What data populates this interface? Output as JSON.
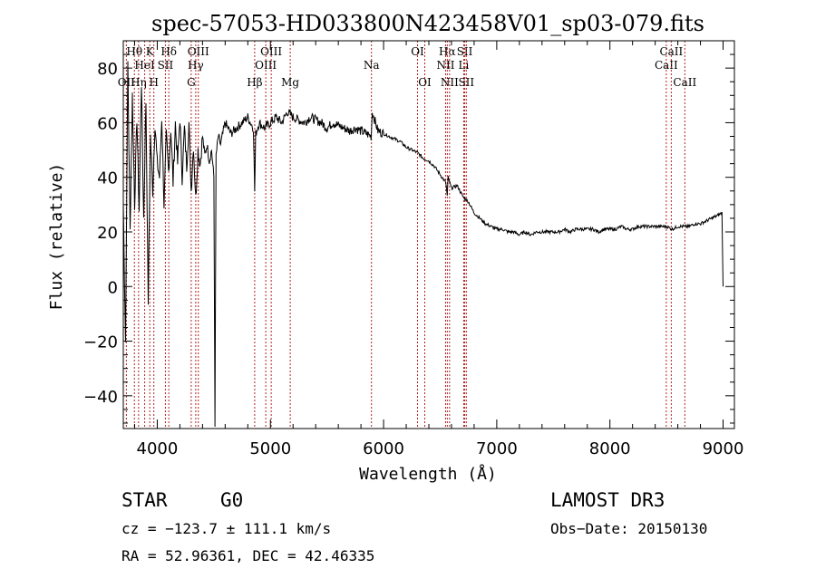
{
  "chart_data": {
    "type": "line",
    "title": "spec-57053-HD033800N423458V01_sp03-079.fits",
    "xlabel": "Wavelength (Å)",
    "ylabel": "Flux (relative)",
    "xlim": [
      3700,
      9100
    ],
    "ylim": [
      -52,
      90
    ],
    "x_ticks": [
      4000,
      5000,
      6000,
      7000,
      8000,
      9000
    ],
    "y_ticks": [
      -40,
      -20,
      0,
      20,
      40,
      60,
      80
    ],
    "series": [
      {
        "name": "spectrum",
        "x": [
          3700,
          3720,
          3740,
          3760,
          3780,
          3800,
          3820,
          3840,
          3860,
          3880,
          3900,
          3920,
          3940,
          3960,
          3980,
          4000,
          4020,
          4040,
          4060,
          4080,
          4100,
          4120,
          4140,
          4160,
          4180,
          4200,
          4220,
          4240,
          4260,
          4280,
          4300,
          4320,
          4340,
          4360,
          4380,
          4400,
          4420,
          4440,
          4460,
          4480,
          4500,
          4510,
          4520,
          4540,
          4560,
          4600,
          4650,
          4700,
          4750,
          4800,
          4850,
          4861,
          4870,
          4900,
          4950,
          5000,
          5050,
          5100,
          5150,
          5200,
          5250,
          5300,
          5350,
          5400,
          5450,
          5500,
          5550,
          5600,
          5650,
          5700,
          5750,
          5800,
          5850,
          5890,
          5900,
          5950,
          6000,
          6050,
          6100,
          6150,
          6200,
          6250,
          6300,
          6350,
          6400,
          6450,
          6500,
          6550,
          6563,
          6570,
          6600,
          6650,
          6700,
          6750,
          6800,
          6850,
          6900,
          6950,
          7000,
          7050,
          7100,
          7150,
          7200,
          7250,
          7300,
          7350,
          7400,
          7450,
          7500,
          7550,
          7600,
          7650,
          7700,
          7750,
          7800,
          7850,
          7900,
          7950,
          8000,
          8050,
          8100,
          8150,
          8200,
          8250,
          8300,
          8350,
          8400,
          8450,
          8500,
          8550,
          8600,
          8650,
          8700,
          8750,
          8800,
          8850,
          8900,
          8950,
          8990,
          9000
        ],
        "y": [
          30,
          -20,
          82,
          20,
          70,
          30,
          62,
          28,
          75,
          25,
          68,
          -5,
          55,
          35,
          60,
          45,
          40,
          62,
          30,
          55,
          42,
          58,
          38,
          60,
          45,
          62,
          40,
          58,
          44,
          60,
          35,
          52,
          32,
          50,
          45,
          55,
          48,
          52,
          46,
          50,
          40,
          -50,
          48,
          55,
          52,
          60,
          56,
          58,
          60,
          62,
          58,
          35,
          56,
          60,
          58,
          60,
          62,
          60,
          64,
          62,
          61,
          60,
          62,
          61,
          60,
          58,
          60,
          59,
          58,
          57,
          58,
          57,
          56,
          55,
          64,
          57,
          56,
          55,
          54,
          53,
          51,
          50,
          49,
          47,
          46,
          44,
          41,
          38,
          33,
          40,
          36,
          37,
          33,
          31,
          27,
          25,
          23,
          22,
          21,
          21,
          20,
          20,
          19,
          20,
          19,
          20,
          20,
          20,
          20,
          20,
          21,
          20,
          21,
          21,
          21,
          21,
          20,
          21,
          21,
          21,
          22,
          21,
          21,
          22,
          22,
          22,
          22,
          22,
          22,
          21,
          22,
          22,
          22,
          23,
          23,
          24,
          25,
          26,
          27,
          0
        ]
      }
    ],
    "spectral_lines": [
      {
        "x": 3727,
        "label": "OII",
        "row": 3
      },
      {
        "x": 3798,
        "label": "Hθ",
        "row": 1
      },
      {
        "x": 3835,
        "label": "Hη",
        "row": 3
      },
      {
        "x": 3889,
        "label": "HeI",
        "row": 2
      },
      {
        "x": 3934,
        "label": "K",
        "row": 1
      },
      {
        "x": 3970,
        "label": "H",
        "row": 3
      },
      {
        "x": 4072,
        "label": "SII",
        "row": 2
      },
      {
        "x": 4102,
        "label": "Hδ",
        "row": 1
      },
      {
        "x": 4300,
        "label": "G",
        "row": 3
      },
      {
        "x": 4340,
        "label": "Hγ",
        "row": 2
      },
      {
        "x": 4363,
        "label": "OIII",
        "row": 1
      },
      {
        "x": 4861,
        "label": "Hβ",
        "row": 3
      },
      {
        "x": 4959,
        "label": "OIII",
        "row": 2
      },
      {
        "x": 5007,
        "label": "OIII",
        "row": 1
      },
      {
        "x": 5175,
        "label": "Mg",
        "row": 3
      },
      {
        "x": 5893,
        "label": "Na",
        "row": 2
      },
      {
        "x": 6300,
        "label": "OI",
        "row": 1
      },
      {
        "x": 6364,
        "label": "OI",
        "row": 3
      },
      {
        "x": 6548,
        "label": "NII",
        "row": 2
      },
      {
        "x": 6563,
        "label": "Hα",
        "row": 1
      },
      {
        "x": 6583,
        "label": "NII",
        "row": 3
      },
      {
        "x": 6708,
        "label": "Li",
        "row": 2
      },
      {
        "x": 6717,
        "label": "SII",
        "row": 1
      },
      {
        "x": 6731,
        "label": "SII",
        "row": 3
      },
      {
        "x": 8498,
        "label": "CaII",
        "row": 2
      },
      {
        "x": 8542,
        "label": "CaII",
        "row": 1
      },
      {
        "x": 8662,
        "label": "CaII",
        "row": 3
      }
    ]
  },
  "info": {
    "object_type": "STAR",
    "subclass": "G0",
    "survey": "LAMOST DR3",
    "cz": "cz = −123.7 ± 111.1 km/s",
    "obs_date": "Obs−Date: 20150130",
    "coords": "RA =  52.96361, DEC =  42.46335"
  },
  "colors": {
    "line_marker": "#b22222",
    "spectrum": "#000000"
  }
}
